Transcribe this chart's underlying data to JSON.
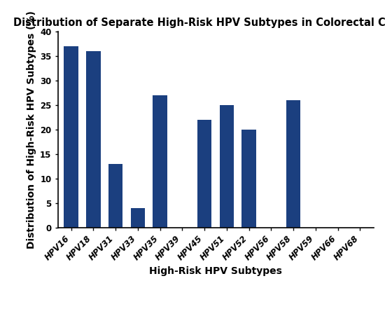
{
  "title": "Distribution of Separate High-Risk HPV Subtypes in Colorectal Cancer",
  "xlabel": "High-Risk HPV Subtypes",
  "ylabel": "Distribution of High-Risk HPV Subtypes (%)",
  "categories": [
    "HPV16",
    "HPV18",
    "HPV31",
    "HPV33",
    "HPV35",
    "HPV39",
    "HPV45",
    "HPV51",
    "HPV52",
    "HPV56",
    "HPV58",
    "HPV59",
    "HPV66",
    "HPV68"
  ],
  "values": [
    37,
    36,
    13,
    4,
    27,
    0,
    22,
    25,
    20,
    0,
    26,
    0,
    0,
    0
  ],
  "bar_color": "#1b3f7f",
  "ylim": [
    0,
    40
  ],
  "yticks": [
    0,
    5,
    10,
    15,
    20,
    25,
    30,
    35,
    40
  ],
  "title_fontsize": 10.5,
  "axis_label_fontsize": 10,
  "tick_fontsize": 8.5,
  "background_color": "#ffffff"
}
